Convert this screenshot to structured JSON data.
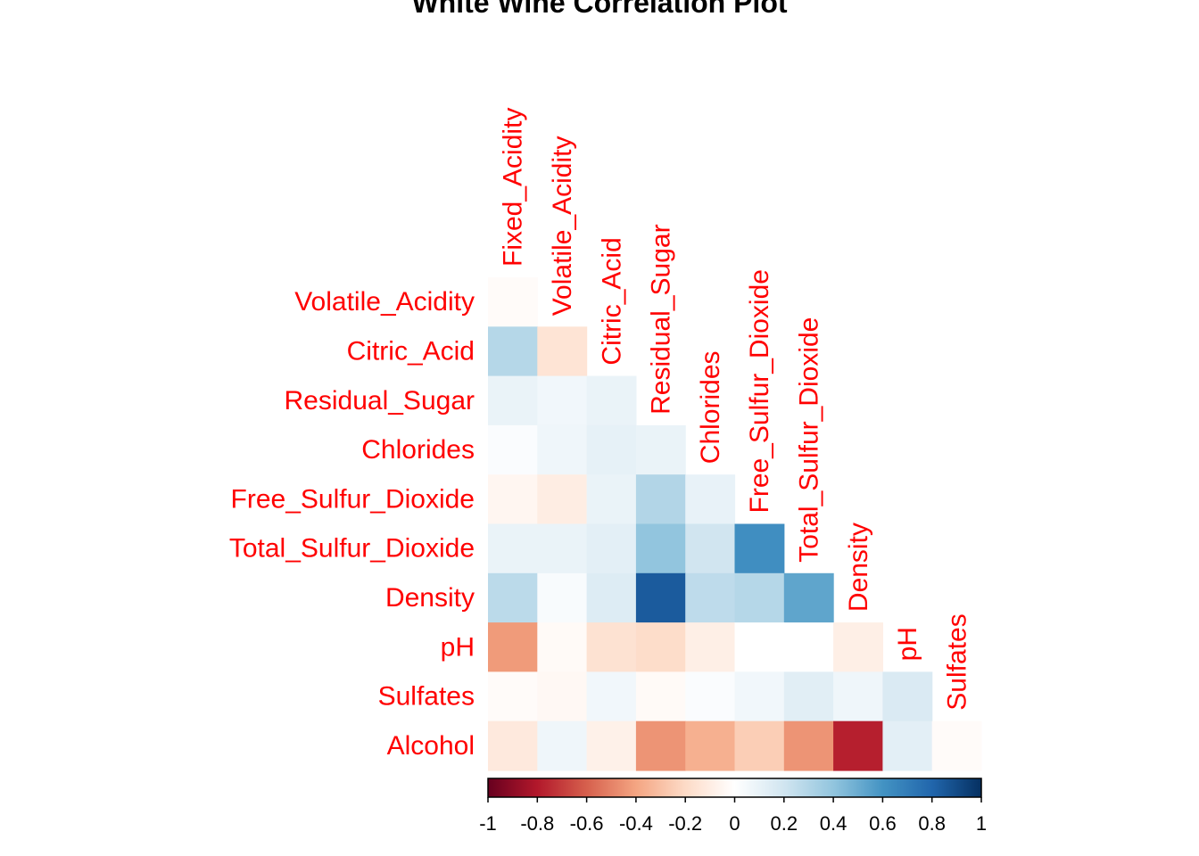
{
  "chart_data": {
    "type": "heatmap",
    "title": "White Wine Correlation Plot",
    "variables": [
      "Fixed_Acidity",
      "Volatile_Acidity",
      "Citric_Acid",
      "Residual_Sugar",
      "Chlorides",
      "Free_Sulfur_Dioxide",
      "Total_Sulfur_Dioxide",
      "Density",
      "pH",
      "Sulfates",
      "Alcohol"
    ],
    "row_labels": [
      "Volatile_Acidity",
      "Citric_Acid",
      "Residual_Sugar",
      "Chlorides",
      "Free_Sulfur_Dioxide",
      "Total_Sulfur_Dioxide",
      "Density",
      "pH",
      "Sulfates",
      "Alcohol"
    ],
    "col_labels": [
      "Fixed_Acidity",
      "Volatile_Acidity",
      "Citric_Acid",
      "Residual_Sugar",
      "Chlorides",
      "Free_Sulfur_Dioxide",
      "Total_Sulfur_Dioxide",
      "Density",
      "pH",
      "Sulfates"
    ],
    "matrix_type": "lower triangle",
    "values": [
      [
        -0.02
      ],
      [
        0.29,
        -0.15
      ],
      [
        0.09,
        0.06,
        0.09
      ],
      [
        0.02,
        0.07,
        0.11,
        0.09
      ],
      [
        -0.05,
        -0.1,
        0.09,
        0.3,
        0.1
      ],
      [
        0.09,
        0.09,
        0.12,
        0.4,
        0.2,
        0.62
      ],
      [
        0.27,
        0.03,
        0.15,
        0.84,
        0.26,
        0.29,
        0.53
      ],
      [
        -0.43,
        -0.03,
        -0.16,
        -0.19,
        -0.09,
        0.0,
        0.0,
        -0.09
      ],
      [
        -0.02,
        -0.04,
        0.06,
        -0.03,
        0.02,
        0.06,
        0.13,
        0.07,
        0.16
      ],
      [
        -0.12,
        0.07,
        -0.08,
        -0.45,
        -0.36,
        -0.25,
        -0.45,
        -0.78,
        0.12,
        -0.02
      ]
    ],
    "legend": {
      "type": "colorbar",
      "position": "bottom",
      "range": [
        -1,
        1
      ],
      "ticks": [
        "-1",
        "-0.8",
        "-0.6",
        "-0.4",
        "-0.2",
        "0",
        "0.2",
        "0.4",
        "0.6",
        "0.8",
        "1"
      ]
    },
    "colors": {
      "label": "#FF0000",
      "title": "#000000",
      "scale": [
        "#67001F",
        "#B2182B",
        "#D6604D",
        "#F4A582",
        "#FDDBC7",
        "#FFFFFF",
        "#D1E5F0",
        "#92C5DE",
        "#4393C3",
        "#2166AC",
        "#053061"
      ]
    }
  }
}
